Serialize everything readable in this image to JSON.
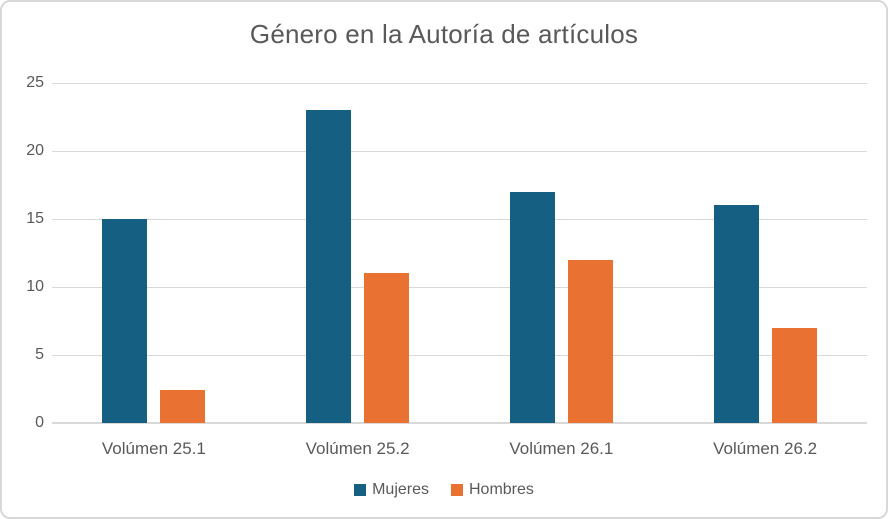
{
  "chart_data": {
    "type": "bar",
    "title": "Género en la Autoría de artículos",
    "categories": [
      "Volúmen 25.1",
      "Volúmen 25.2",
      "Volúmen 26.1",
      "Volúmen 26.2"
    ],
    "series": [
      {
        "name": "Mujeres",
        "color": "#156082",
        "values": [
          15,
          23,
          17,
          16
        ]
      },
      {
        "name": "Hombres",
        "color": "#E97132",
        "values": [
          2.4,
          11,
          12,
          7
        ]
      }
    ],
    "xlabel": "",
    "ylabel": "",
    "ylim": [
      0,
      25
    ],
    "yticks": [
      0,
      5,
      10,
      15,
      20,
      25
    ],
    "grid": true,
    "legend_position": "bottom",
    "colors": {
      "text": "#595959",
      "gridline": "#d9d9d9",
      "canvas_border": "#d8d8d8",
      "background": "#ffffff"
    }
  }
}
